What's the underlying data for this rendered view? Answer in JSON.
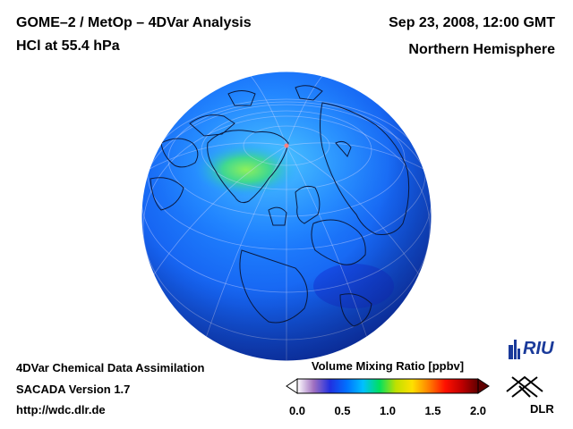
{
  "header": {
    "title": "GOME–2 / MetOp – 4DVar Analysis",
    "subtitle": "HCl at 55.4 hPa",
    "datetime": "Sep 23, 2008, 12:00 GMT",
    "region": "Northern Hemisphere"
  },
  "footer": {
    "line1": "4DVar Chemical Data Assimilation",
    "line2": "SACADA Version 1.7",
    "line3": "http://wdc.dlr.de"
  },
  "colorbar": {
    "title": "Volume Mixing Ratio [ppbv]",
    "ticks": [
      "0.0",
      "0.5",
      "1.0",
      "1.5",
      "2.0"
    ],
    "min": 0.0,
    "max": 2.0,
    "colors": [
      "#ffffff",
      "#a070c0",
      "#2030e0",
      "#0070ff",
      "#00c0ff",
      "#00e060",
      "#c0e000",
      "#ffe000",
      "#ff8000",
      "#ff1000",
      "#c00000",
      "#600000"
    ]
  },
  "logos": {
    "riu": "RIU",
    "dlr": "DLR"
  },
  "map": {
    "projection": "orthographic",
    "background_value_color": "#1a6cff",
    "high_region_color": "#5ee07a"
  }
}
